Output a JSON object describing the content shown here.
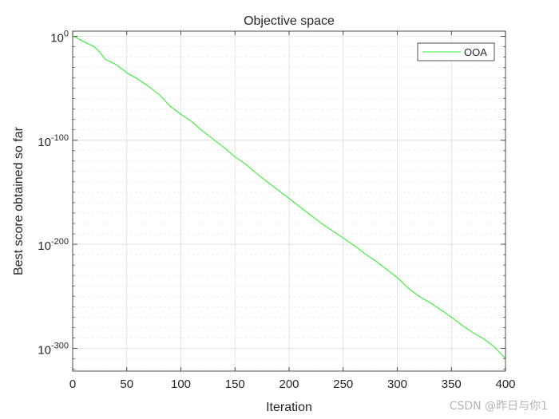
{
  "chart_data": {
    "type": "line",
    "title": "Objective space",
    "xlabel": "Iteration",
    "ylabel": "Best score obtained so far",
    "xscale": "linear",
    "yscale": "log",
    "xlim": [
      0,
      400
    ],
    "ylim_log10": [
      -322,
      5
    ],
    "xticks": [
      0,
      50,
      100,
      150,
      200,
      250,
      300,
      350,
      400
    ],
    "xtick_labels": [
      "0",
      "50",
      "100",
      "150",
      "200",
      "250",
      "300",
      "350",
      "400"
    ],
    "yticks_log10": [
      0,
      -100,
      -200,
      -300
    ],
    "ytick_bases": [
      "10",
      "10",
      "10",
      "10"
    ],
    "ytick_exponents": [
      "0",
      "-100",
      "-200",
      "-300"
    ],
    "grid": true,
    "legend_position": "top-right",
    "series": [
      {
        "name": "OOA",
        "color": "#33ee33",
        "x": [
          1,
          10,
          20,
          25,
          30,
          40,
          50,
          60,
          70,
          80,
          90,
          100,
          110,
          120,
          130,
          140,
          150,
          160,
          170,
          180,
          190,
          200,
          210,
          220,
          230,
          240,
          250,
          260,
          270,
          280,
          290,
          300,
          310,
          320,
          330,
          340,
          350,
          360,
          370,
          380,
          390,
          400
        ],
        "log10_y": [
          0,
          -5,
          -10,
          -15,
          -22,
          -27,
          -35,
          -41,
          -48,
          -56,
          -67,
          -75,
          -82,
          -91,
          -99,
          -107,
          -116,
          -123,
          -132,
          -140,
          -148,
          -156,
          -164,
          -172,
          -180,
          -187,
          -194,
          -201,
          -209,
          -216,
          -224,
          -232,
          -242,
          -250,
          -256,
          -263,
          -270,
          -278,
          -285,
          -291,
          -299,
          -310
        ]
      }
    ]
  },
  "watermark": "CSDN @昨日与你1"
}
